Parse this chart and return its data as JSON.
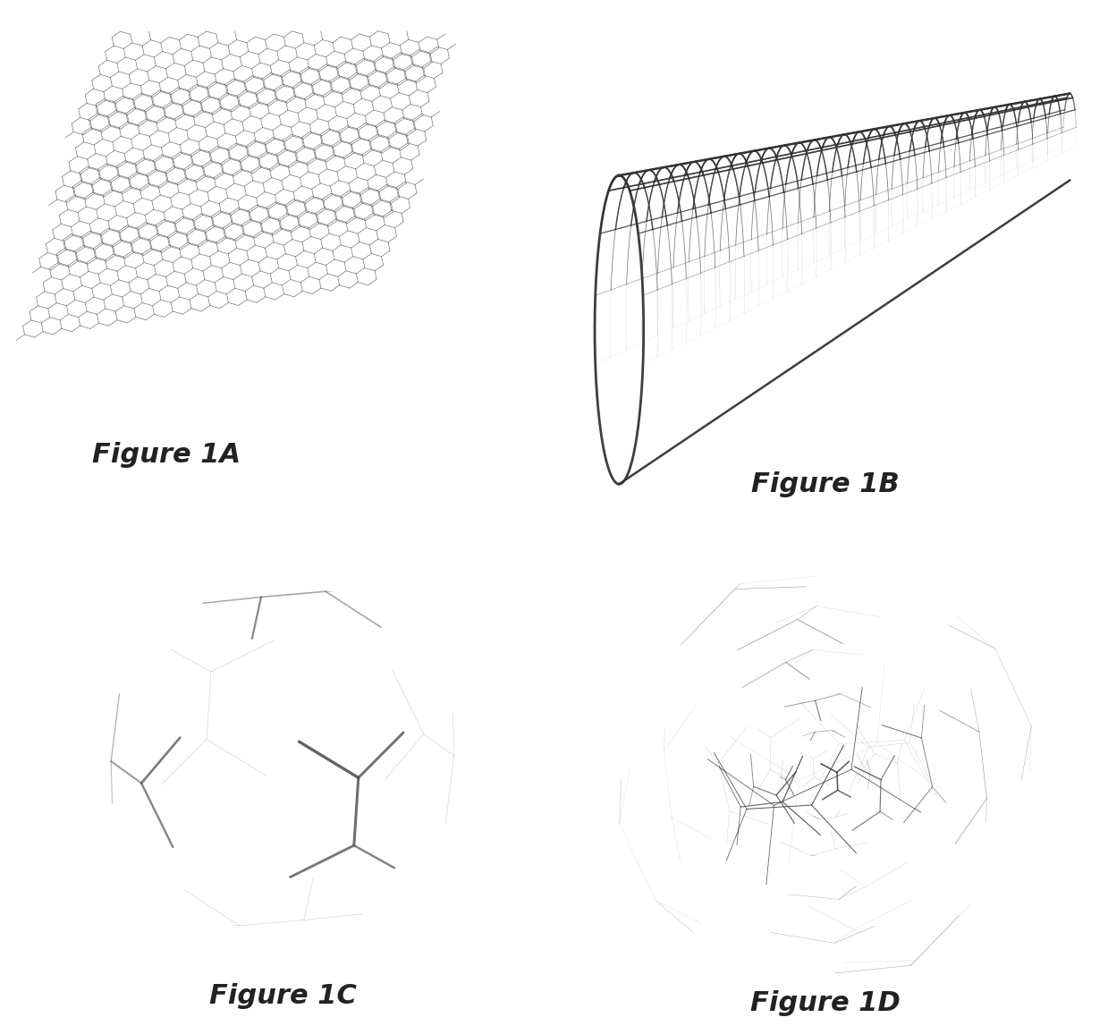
{
  "fig_labels": [
    "Figure 1A",
    "Figure 1B",
    "Figure 1C",
    "Figure 1D"
  ],
  "label_fontsize": 22,
  "label_style": "italic",
  "label_weight": "bold",
  "background_color": "#ffffff",
  "line_color": "#555555",
  "line_color_dark": "#333333",
  "line_color_b": "#444444"
}
